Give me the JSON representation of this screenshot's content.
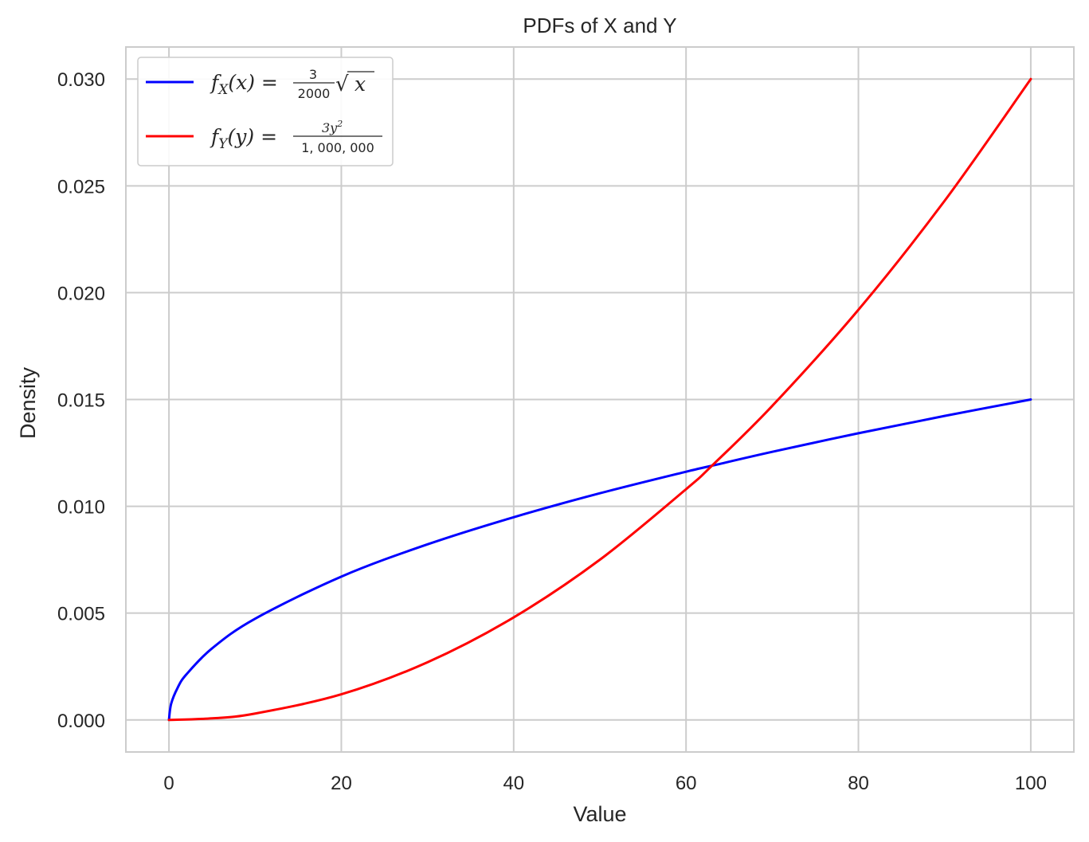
{
  "chart_data": {
    "type": "line",
    "title": "PDFs of X and Y",
    "xlabel": "Value",
    "ylabel": "Density",
    "xlim": [
      -5,
      105
    ],
    "ylim": [
      -0.0015,
      0.0315
    ],
    "xticks": [
      "0",
      "20",
      "40",
      "60",
      "80",
      "100"
    ],
    "yticks": [
      "0.000",
      "0.005",
      "0.010",
      "0.015",
      "0.020",
      "0.025",
      "0.030"
    ],
    "grid": true,
    "legend_position": "top-left",
    "series": [
      {
        "name": "f_X(x) = 3/2000 √x",
        "color": "#0000ff",
        "x": [
          0,
          0.25,
          1,
          2,
          5,
          10,
          20,
          30,
          40,
          50,
          60,
          63,
          70,
          80,
          90,
          100
        ],
        "y": [
          0,
          0.00075,
          0.0015,
          0.00212,
          0.00335,
          0.00474,
          0.00671,
          0.00822,
          0.00949,
          0.01061,
          0.01162,
          0.0119,
          0.01255,
          0.01342,
          0.01423,
          0.015
        ]
      },
      {
        "name": "f_Y(y) = 3y²/1,000,000",
        "color": "#ff0000",
        "x": [
          0,
          5,
          10,
          20,
          30,
          40,
          50,
          60,
          63,
          70,
          80,
          90,
          100
        ],
        "y": [
          0,
          7.5e-05,
          0.0003,
          0.0012,
          0.0027,
          0.0048,
          0.0075,
          0.0108,
          0.0119,
          0.0147,
          0.0192,
          0.0243,
          0.03
        ]
      }
    ],
    "legend": {
      "x_series": {
        "lhs_f": "f",
        "lhs_sub": "X",
        "lhs_arg": "(x) = ",
        "num": "3",
        "den": "2000",
        "root": "√",
        "root_arg": "x"
      },
      "y_series": {
        "lhs_f": "f",
        "lhs_sub": "Y",
        "lhs_arg": "(y) = ",
        "num": "3y",
        "num_sup": "2",
        "den": "1, 000, 000"
      }
    }
  }
}
